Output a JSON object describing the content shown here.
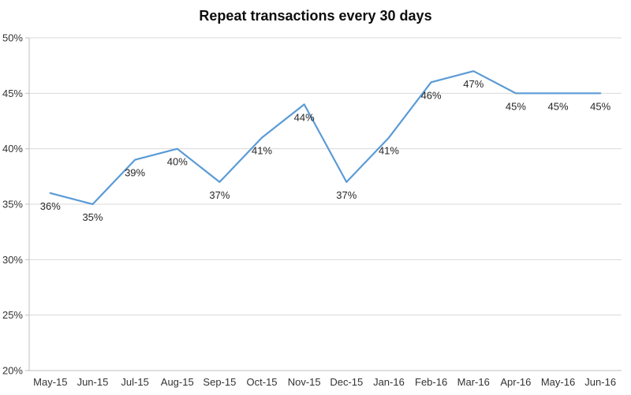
{
  "chart_data": {
    "type": "line",
    "title": "Repeat transactions every 30 days",
    "categories": [
      "May-15",
      "Jun-15",
      "Jul-15",
      "Aug-15",
      "Sep-15",
      "Oct-15",
      "Nov-15",
      "Dec-15",
      "Jan-16",
      "Feb-16",
      "Mar-16",
      "Apr-16",
      "May-16",
      "Jun-16"
    ],
    "values": [
      36,
      35,
      39,
      40,
      37,
      41,
      44,
      37,
      41,
      46,
      47,
      45,
      45,
      45
    ],
    "data_labels": [
      "36%",
      "35%",
      "39%",
      "40%",
      "37%",
      "41%",
      "44%",
      "37%",
      "41%",
      "46%",
      "47%",
      "45%",
      "45%",
      "45%"
    ],
    "unit": "%",
    "xlabel": "",
    "ylabel": "",
    "ylim": [
      20,
      50
    ],
    "ytick_step": 5,
    "ytick_labels": [
      "20%",
      "25%",
      "30%",
      "35%",
      "40%",
      "45%",
      "50%"
    ],
    "grid": true,
    "legend_position": "none",
    "colors": {
      "line": "#5B9BD5",
      "gridline": "#D9D9D9",
      "axis": "#BFBFBF",
      "tick_label": "#333333",
      "data_label": "#262626",
      "title": "#0d0d0d"
    }
  }
}
